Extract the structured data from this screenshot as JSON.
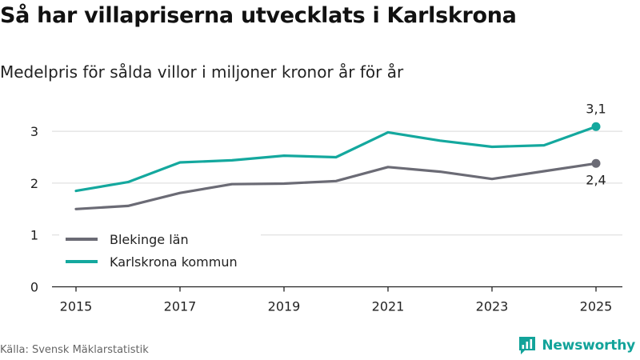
{
  "header": {
    "title": "Så har villapriserna utvecklats i Karlskrona",
    "subtitle": "Medelpris för sålda villor i miljoner kronor år för år"
  },
  "footer": {
    "source": "Källa: Svensk Mäklarstatistik",
    "brand": "Newsworthy"
  },
  "colors": {
    "blekinge": "#6b6b75",
    "karlskrona": "#14a89e",
    "grid": "#d9d9d9",
    "axis": "#222222",
    "brand": "#12a39a"
  },
  "chart_data": {
    "type": "line",
    "x": [
      2015,
      2016,
      2017,
      2018,
      2019,
      2020,
      2021,
      2022,
      2023,
      2024,
      2025
    ],
    "x_tick_labels": [
      "2015",
      "2017",
      "2019",
      "2021",
      "2023",
      "2025"
    ],
    "y_tick_labels": [
      "0",
      "1",
      "2",
      "3"
    ],
    "ylim": [
      0,
      3.3
    ],
    "grid": true,
    "legend_position": "lower-left",
    "series": [
      {
        "name": "Blekinge län",
        "key": "blekinge",
        "values": [
          1.5,
          1.56,
          1.81,
          1.98,
          1.99,
          2.04,
          2.31,
          2.22,
          2.08,
          2.23,
          2.38
        ],
        "end_label": "2,4"
      },
      {
        "name": "Karlskrona kommun",
        "key": "karlskrona",
        "values": [
          1.85,
          2.02,
          2.4,
          2.44,
          2.53,
          2.5,
          2.98,
          2.82,
          2.7,
          2.73,
          3.09
        ],
        "end_label": "3,1"
      }
    ]
  }
}
